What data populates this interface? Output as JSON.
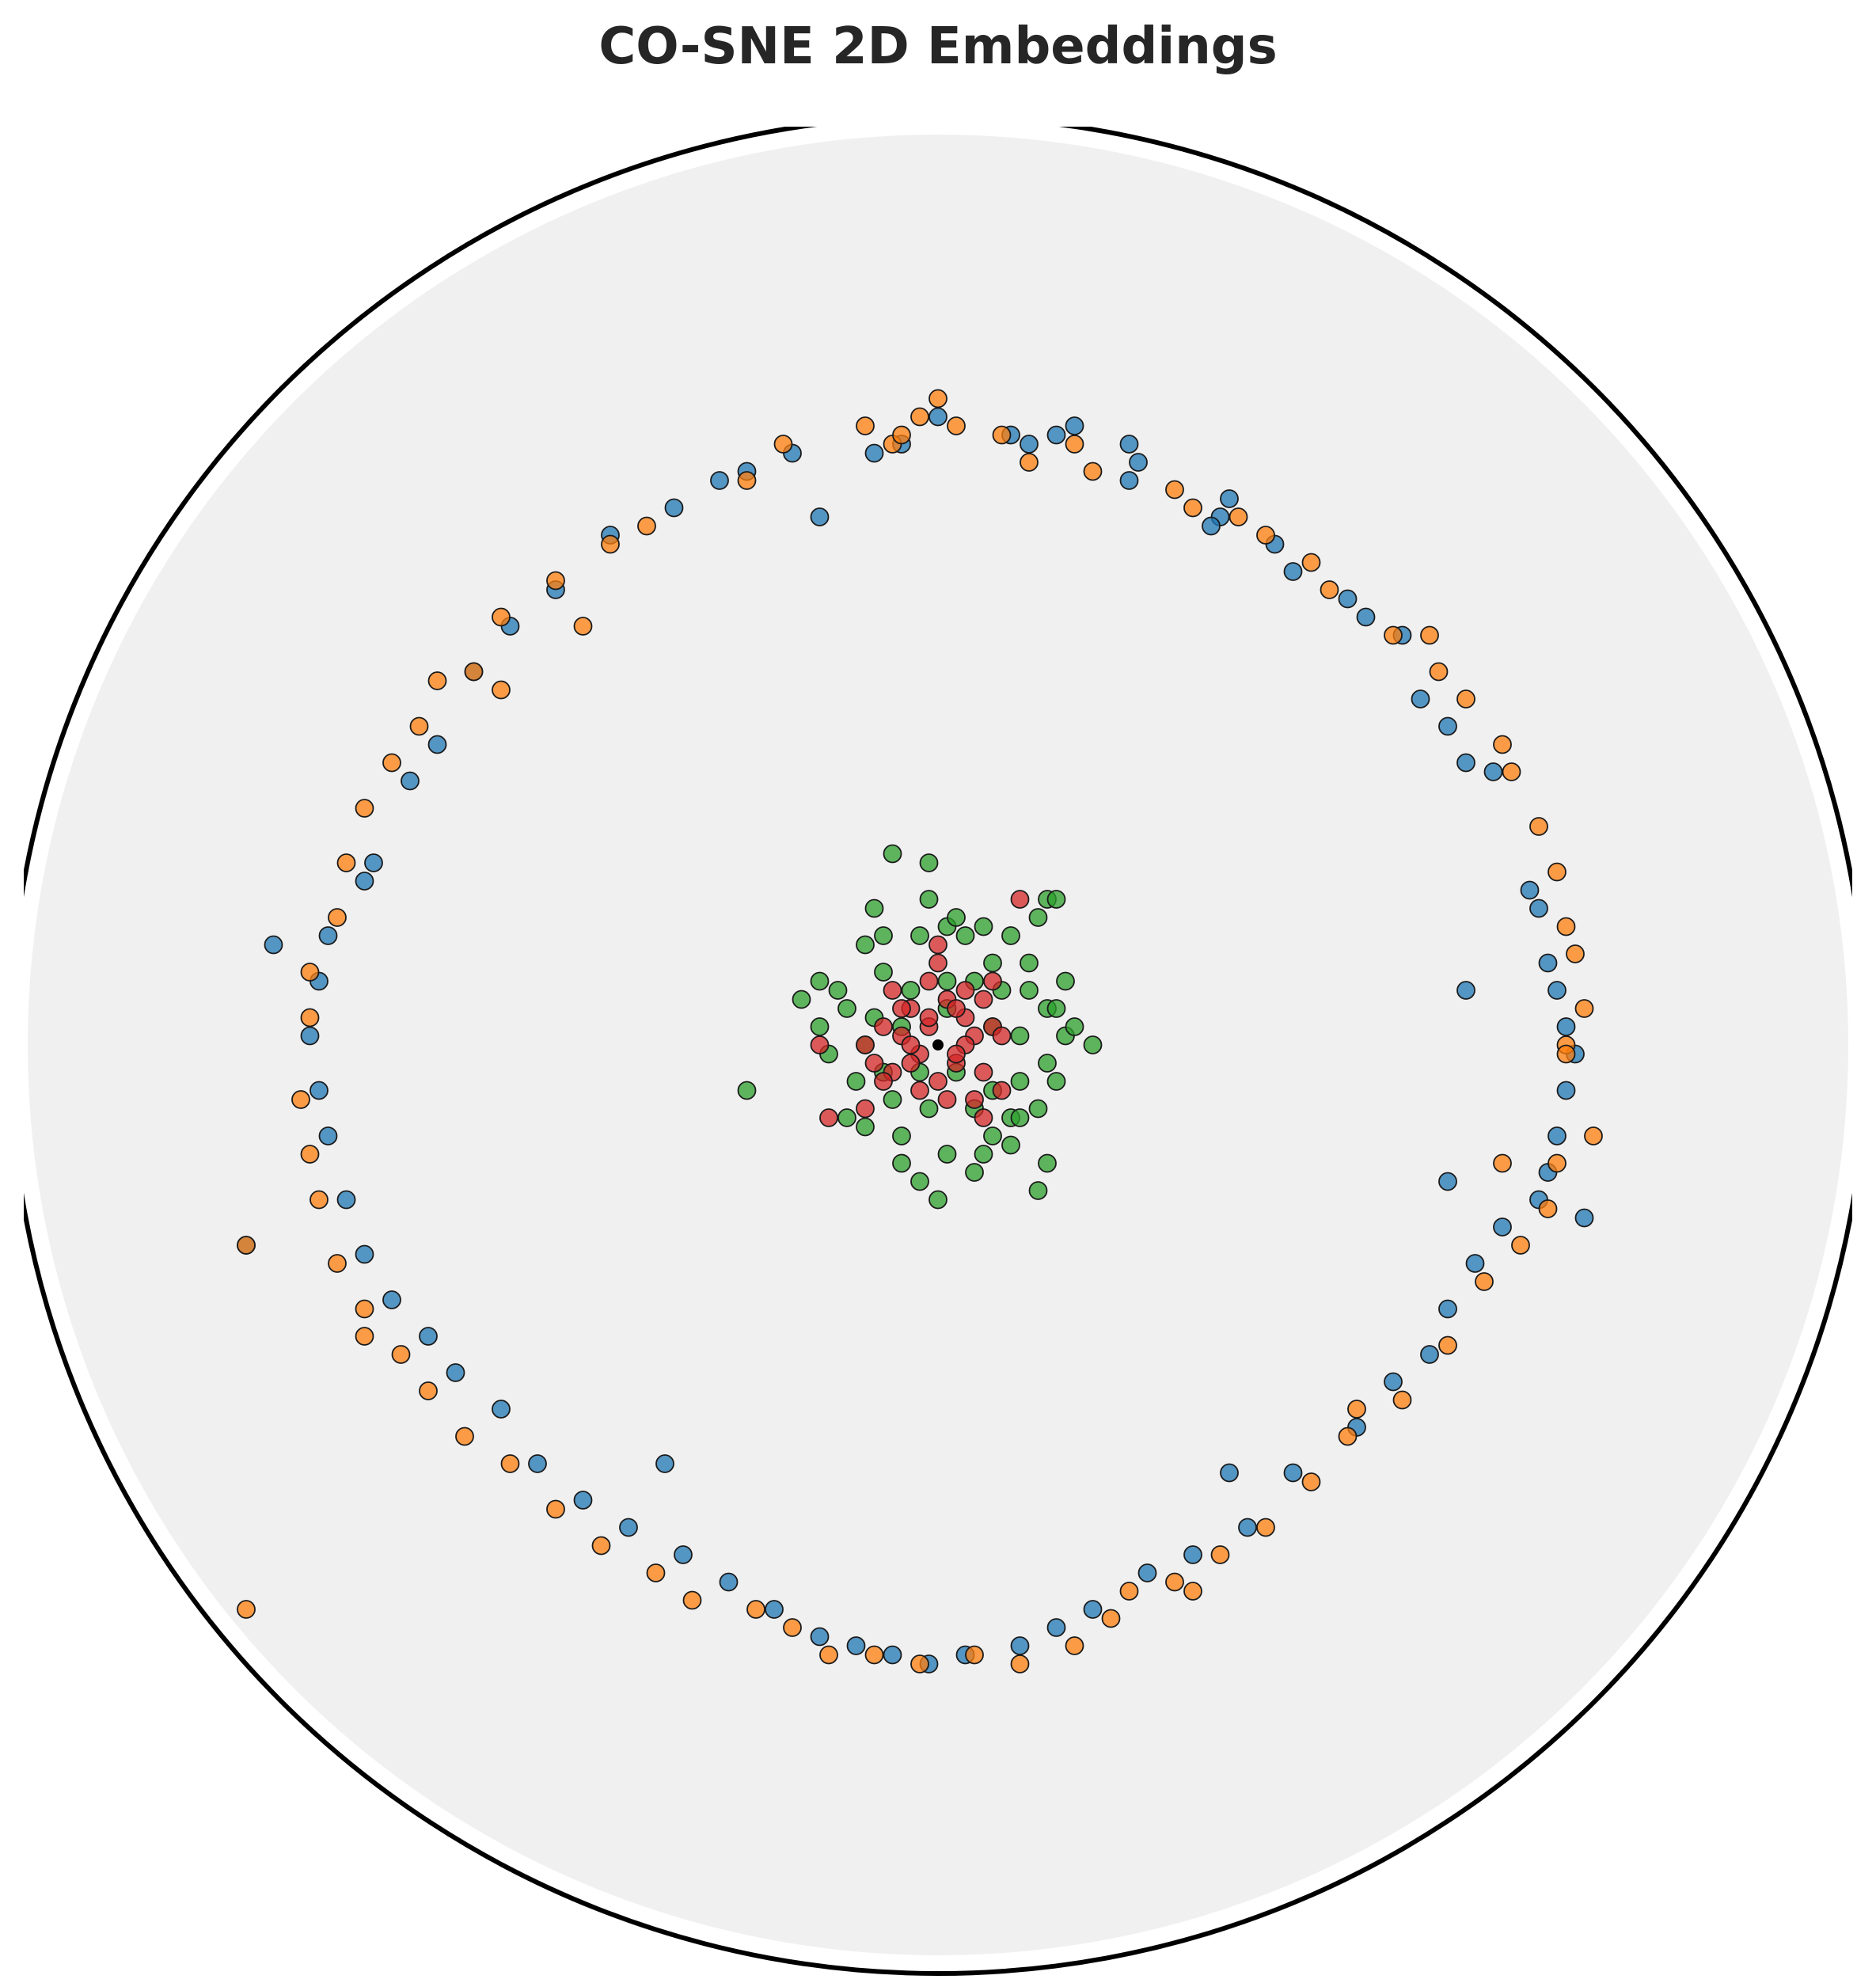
{
  "chart_data": {
    "type": "scatter",
    "title": "CO-SNE 2D Embeddings",
    "xlabel": "",
    "ylabel": "",
    "xlim": [
      -1.02,
      1.02
    ],
    "ylim": [
      -1.02,
      1.02
    ],
    "grid": false,
    "legend": "none",
    "background": "poincare-disk",
    "colors": {
      "disk_fill": "#f0f0f0",
      "boundary": "#000000",
      "marker_edge": "#1a1a1a",
      "blue": "#1f77b4",
      "orange": "#ff7f0e",
      "green": "#2ca02c",
      "red": "#d62728",
      "origin": "#000000"
    },
    "series": [
      {
        "color": "blue",
        "points": [
          [
            0.0,
            0.69
          ],
          [
            0.08,
            0.67
          ],
          [
            0.1,
            0.66
          ],
          [
            0.13,
            0.67
          ],
          [
            0.15,
            0.68
          ],
          [
            0.21,
            0.66
          ],
          [
            0.22,
            0.64
          ],
          [
            0.21,
            0.62
          ],
          [
            0.32,
            0.6
          ],
          [
            0.31,
            0.58
          ],
          [
            0.3,
            0.57
          ],
          [
            0.37,
            0.55
          ],
          [
            0.39,
            0.52
          ],
          [
            0.45,
            0.49
          ],
          [
            0.47,
            0.47
          ],
          [
            0.51,
            0.45
          ],
          [
            0.53,
            0.38
          ],
          [
            0.56,
            0.35
          ],
          [
            0.58,
            0.31
          ],
          [
            0.61,
            0.3
          ],
          [
            0.65,
            0.17
          ],
          [
            0.66,
            0.15
          ],
          [
            0.67,
            0.09
          ],
          [
            0.68,
            0.06
          ],
          [
            0.69,
            0.02
          ],
          [
            0.7,
            -0.01
          ],
          [
            0.69,
            -0.05
          ],
          [
            0.68,
            -0.1
          ],
          [
            0.67,
            -0.14
          ],
          [
            0.66,
            -0.17
          ],
          [
            0.62,
            -0.2
          ],
          [
            0.59,
            -0.24
          ],
          [
            0.56,
            -0.29
          ],
          [
            0.54,
            -0.34
          ],
          [
            0.5,
            -0.37
          ],
          [
            0.46,
            -0.42
          ],
          [
            0.39,
            -0.47
          ],
          [
            0.34,
            -0.53
          ],
          [
            0.28,
            -0.56
          ],
          [
            0.23,
            -0.58
          ],
          [
            0.17,
            -0.62
          ],
          [
            0.13,
            -0.64
          ],
          [
            0.09,
            -0.66
          ],
          [
            0.03,
            -0.67
          ],
          [
            -0.01,
            -0.68
          ],
          [
            -0.05,
            -0.67
          ],
          [
            -0.09,
            -0.66
          ],
          [
            -0.13,
            -0.65
          ],
          [
            -0.18,
            -0.62
          ],
          [
            -0.23,
            -0.59
          ],
          [
            -0.28,
            -0.56
          ],
          [
            -0.34,
            -0.53
          ],
          [
            -0.39,
            -0.5
          ],
          [
            -0.44,
            -0.46
          ],
          [
            -0.48,
            -0.4
          ],
          [
            -0.53,
            -0.36
          ],
          [
            -0.56,
            -0.32
          ],
          [
            -0.6,
            -0.28
          ],
          [
            -0.63,
            -0.23
          ],
          [
            -0.65,
            -0.17
          ],
          [
            -0.67,
            -0.1
          ],
          [
            -0.68,
            -0.05
          ],
          [
            -0.69,
            0.01
          ],
          [
            -0.68,
            0.07
          ],
          [
            -0.67,
            0.12
          ],
          [
            -0.63,
            0.18
          ],
          [
            -0.62,
            0.2
          ],
          [
            -0.58,
            0.29
          ],
          [
            -0.55,
            0.33
          ],
          [
            -0.51,
            0.41
          ],
          [
            -0.47,
            0.46
          ],
          [
            -0.42,
            0.5
          ],
          [
            -0.36,
            0.56
          ],
          [
            -0.29,
            0.59
          ],
          [
            -0.24,
            0.62
          ],
          [
            -0.21,
            0.63
          ],
          [
            -0.16,
            0.65
          ],
          [
            -0.07,
            0.65
          ],
          [
            -0.04,
            0.66
          ],
          [
            -0.13,
            0.58
          ],
          [
            -0.3,
            -0.46
          ],
          [
            0.58,
            0.06
          ],
          [
            0.56,
            -0.15
          ],
          [
            0.32,
            -0.47
          ],
          [
            -0.76,
            -0.22
          ],
          [
            0.71,
            -0.19
          ],
          [
            -0.73,
            0.11
          ]
        ]
      },
      {
        "color": "orange",
        "points": [
          [
            0.0,
            0.71
          ],
          [
            0.02,
            0.68
          ],
          [
            -0.02,
            0.69
          ],
          [
            -0.08,
            0.68
          ],
          [
            -0.05,
            0.66
          ],
          [
            0.07,
            0.67
          ],
          [
            0.15,
            0.66
          ],
          [
            0.17,
            0.63
          ],
          [
            0.26,
            0.61
          ],
          [
            0.28,
            0.59
          ],
          [
            0.33,
            0.58
          ],
          [
            0.36,
            0.56
          ],
          [
            0.41,
            0.53
          ],
          [
            0.43,
            0.5
          ],
          [
            0.5,
            0.45
          ],
          [
            0.55,
            0.41
          ],
          [
            0.58,
            0.38
          ],
          [
            0.62,
            0.33
          ],
          [
            0.63,
            0.3
          ],
          [
            0.66,
            0.24
          ],
          [
            0.68,
            0.19
          ],
          [
            0.69,
            0.13
          ],
          [
            0.7,
            0.1
          ],
          [
            0.71,
            0.04
          ],
          [
            0.69,
            0.0
          ],
          [
            0.72,
            -0.1
          ],
          [
            0.68,
            -0.13
          ],
          [
            0.67,
            -0.18
          ],
          [
            0.64,
            -0.22
          ],
          [
            0.6,
            -0.26
          ],
          [
            0.56,
            -0.33
          ],
          [
            0.51,
            -0.39
          ],
          [
            0.45,
            -0.43
          ],
          [
            0.41,
            -0.48
          ],
          [
            0.36,
            -0.53
          ],
          [
            0.31,
            -0.56
          ],
          [
            0.26,
            -0.59
          ],
          [
            0.19,
            -0.63
          ],
          [
            0.15,
            -0.66
          ],
          [
            0.09,
            -0.68
          ],
          [
            0.04,
            -0.67
          ],
          [
            -0.02,
            -0.68
          ],
          [
            -0.07,
            -0.67
          ],
          [
            -0.12,
            -0.67
          ],
          [
            -0.16,
            -0.64
          ],
          [
            -0.2,
            -0.62
          ],
          [
            -0.27,
            -0.61
          ],
          [
            -0.31,
            -0.58
          ],
          [
            -0.37,
            -0.55
          ],
          [
            -0.42,
            -0.51
          ],
          [
            -0.47,
            -0.46
          ],
          [
            -0.52,
            -0.43
          ],
          [
            -0.56,
            -0.38
          ],
          [
            -0.59,
            -0.34
          ],
          [
            -0.63,
            -0.29
          ],
          [
            -0.66,
            -0.24
          ],
          [
            -0.68,
            -0.17
          ],
          [
            -0.69,
            -0.12
          ],
          [
            -0.7,
            -0.06
          ],
          [
            -0.69,
            0.03
          ],
          [
            -0.69,
            0.08
          ],
          [
            -0.66,
            0.14
          ],
          [
            -0.65,
            0.2
          ],
          [
            -0.63,
            0.26
          ],
          [
            -0.6,
            0.31
          ],
          [
            -0.57,
            0.35
          ],
          [
            -0.55,
            0.4
          ],
          [
            -0.48,
            0.47
          ],
          [
            -0.42,
            0.51
          ],
          [
            -0.36,
            0.55
          ],
          [
            -0.32,
            0.57
          ],
          [
            -0.21,
            0.62
          ],
          [
            -0.17,
            0.66
          ],
          [
            -0.04,
            0.67
          ],
          [
            -0.76,
            -0.22
          ],
          [
            -0.76,
            -0.62
          ],
          [
            -0.39,
            0.46
          ],
          [
            -0.51,
            0.41
          ],
          [
            0.46,
            -0.4
          ],
          [
            0.28,
            -0.6
          ],
          [
            0.62,
            -0.13
          ],
          [
            0.69,
            -0.01
          ],
          [
            -0.63,
            -0.32
          ],
          [
            0.21,
            -0.6
          ],
          [
            -0.48,
            0.39
          ],
          [
            0.1,
            0.64
          ],
          [
            0.54,
            0.45
          ]
        ]
      },
      {
        "color": "green",
        "points": [
          [
            -0.05,
            0.21
          ],
          [
            -0.01,
            0.2
          ],
          [
            0.01,
            0.13
          ],
          [
            0.12,
            0.16
          ],
          [
            0.13,
            0.16
          ],
          [
            -0.08,
            0.11
          ],
          [
            0.03,
            0.12
          ],
          [
            -0.02,
            0.12
          ],
          [
            0.05,
            0.13
          ],
          [
            0.08,
            0.12
          ],
          [
            0.1,
            0.09
          ],
          [
            -0.13,
            0.07
          ],
          [
            -0.15,
            0.05
          ],
          [
            -0.11,
            0.06
          ],
          [
            -0.06,
            0.08
          ],
          [
            0.01,
            0.07
          ],
          [
            0.04,
            0.07
          ],
          [
            0.07,
            0.06
          ],
          [
            0.1,
            0.06
          ],
          [
            0.12,
            0.04
          ],
          [
            0.13,
            0.04
          ],
          [
            -0.1,
            0.04
          ],
          [
            -0.07,
            0.03
          ],
          [
            -0.04,
            0.02
          ],
          [
            0.06,
            0.02
          ],
          [
            0.09,
            0.01
          ],
          [
            0.14,
            0.01
          ],
          [
            0.15,
            0.02
          ],
          [
            0.17,
            0.0
          ],
          [
            -0.12,
            -0.01
          ],
          [
            -0.06,
            -0.03
          ],
          [
            -0.02,
            -0.03
          ],
          [
            0.02,
            -0.03
          ],
          [
            0.06,
            -0.05
          ],
          [
            0.09,
            -0.04
          ],
          [
            0.12,
            -0.02
          ],
          [
            -0.09,
            -0.04
          ],
          [
            -0.05,
            -0.06
          ],
          [
            -0.01,
            -0.07
          ],
          [
            0.04,
            -0.07
          ],
          [
            0.08,
            -0.08
          ],
          [
            0.11,
            -0.07
          ],
          [
            -0.08,
            -0.09
          ],
          [
            -0.04,
            -0.1
          ],
          [
            0.01,
            -0.12
          ],
          [
            0.05,
            -0.12
          ],
          [
            0.08,
            -0.11
          ],
          [
            -0.04,
            -0.13
          ],
          [
            0.0,
            -0.17
          ],
          [
            0.04,
            -0.14
          ],
          [
            0.12,
            -0.13
          ],
          [
            -0.02,
            -0.15
          ],
          [
            0.11,
            -0.16
          ],
          [
            -0.21,
            -0.05
          ],
          [
            0.09,
            -0.08
          ],
          [
            0.06,
            0.09
          ],
          [
            -0.03,
            0.06
          ],
          [
            -0.08,
            0.0
          ],
          [
            0.13,
            -0.04
          ],
          [
            0.14,
            0.07
          ],
          [
            -0.07,
            0.15
          ],
          [
            -0.06,
            0.12
          ],
          [
            0.01,
            0.04
          ],
          [
            -0.13,
            0.02
          ],
          [
            -0.1,
            -0.08
          ],
          [
            0.06,
            -0.1
          ],
          [
            0.02,
            0.14
          ],
          [
            -0.01,
            0.16
          ],
          [
            0.11,
            0.14
          ]
        ]
      },
      {
        "color": "red",
        "points": [
          [
            0.01,
            0.05
          ],
          [
            -0.03,
            0.04
          ],
          [
            0.03,
            0.03
          ],
          [
            -0.04,
            0.01
          ],
          [
            0.04,
            0.01
          ],
          [
            -0.02,
            -0.01
          ],
          [
            0.02,
            -0.02
          ],
          [
            -0.05,
            -0.03
          ],
          [
            0.05,
            -0.03
          ],
          [
            0.0,
            -0.04
          ],
          [
            -0.03,
            0.0
          ],
          [
            0.03,
            0.0
          ],
          [
            -0.01,
            0.02
          ],
          [
            0.02,
            0.04
          ],
          [
            -0.04,
            0.04
          ],
          [
            0.06,
            0.02
          ],
          [
            -0.06,
            0.02
          ],
          [
            0.01,
            -0.06
          ],
          [
            -0.02,
            -0.05
          ],
          [
            0.04,
            -0.06
          ],
          [
            -0.06,
            -0.04
          ],
          [
            -0.08,
            0.0
          ],
          [
            0.07,
            -0.05
          ],
          [
            0.03,
            0.06
          ],
          [
            -0.01,
            0.07
          ],
          [
            0.05,
            0.05
          ],
          [
            -0.05,
            0.06
          ],
          [
            0.06,
            0.07
          ],
          [
            0.07,
            0.01
          ],
          [
            -0.07,
            -0.02
          ],
          [
            0.0,
            0.09
          ],
          [
            0.09,
            0.16
          ],
          [
            -0.13,
            0.0
          ],
          [
            -0.12,
            -0.08
          ],
          [
            -0.08,
            -0.07
          ],
          [
            0.05,
            -0.08
          ],
          [
            0.0,
            0.11
          ],
          [
            -0.01,
            0.03
          ],
          [
            0.02,
            -0.01
          ],
          [
            -0.03,
            -0.02
          ]
        ]
      }
    ],
    "origin_point": [
      0.0,
      0.0
    ]
  }
}
